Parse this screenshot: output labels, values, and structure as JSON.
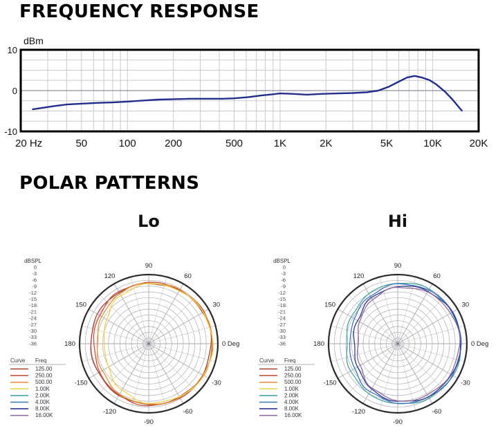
{
  "titles": {
    "frequency_response": "FREQUENCY RESPONSE",
    "polar_patterns": "POLAR PATTERNS"
  },
  "chart_data": [
    {
      "type": "line",
      "title": "FREQUENCY RESPONSE",
      "ylabel": "dBm",
      "ylim": [
        -10,
        10
      ],
      "yticks": [
        "10",
        "0",
        "-10"
      ],
      "ytick_values": [
        10,
        0,
        -10
      ],
      "xlim_hz": [
        20,
        20000
      ],
      "xticks": [
        {
          "hz": 20,
          "label": "20 Hz"
        },
        {
          "hz": 50,
          "label": "50"
        },
        {
          "hz": 100,
          "label": "100"
        },
        {
          "hz": 200,
          "label": "200"
        },
        {
          "hz": 500,
          "label": "500"
        },
        {
          "hz": 1000,
          "label": "1K"
        },
        {
          "hz": 2000,
          "label": "2K"
        },
        {
          "hz": 5000,
          "label": "5K"
        },
        {
          "hz": 10000,
          "label": "10K"
        },
        {
          "hz": 20000,
          "label": "20K"
        }
      ],
      "grid": true,
      "series": [
        {
          "name": "frequency-response",
          "color": "#232c8c",
          "points_hz_db": [
            [
              24,
              -4.6
            ],
            [
              28,
              -4.2
            ],
            [
              33,
              -3.8
            ],
            [
              40,
              -3.4
            ],
            [
              50,
              -3.2
            ],
            [
              65,
              -3.0
            ],
            [
              80,
              -2.9
            ],
            [
              100,
              -2.7
            ],
            [
              130,
              -2.4
            ],
            [
              160,
              -2.2
            ],
            [
              200,
              -2.1
            ],
            [
              260,
              -2.0
            ],
            [
              330,
              -2.0
            ],
            [
              420,
              -2.0
            ],
            [
              500,
              -1.9
            ],
            [
              620,
              -1.6
            ],
            [
              750,
              -1.2
            ],
            [
              900,
              -0.9
            ],
            [
              1000,
              -0.7
            ],
            [
              1200,
              -0.8
            ],
            [
              1500,
              -1.0
            ],
            [
              1900,
              -0.8
            ],
            [
              2400,
              -0.7
            ],
            [
              3000,
              -0.6
            ],
            [
              3700,
              -0.4
            ],
            [
              4400,
              0.0
            ],
            [
              5200,
              1.0
            ],
            [
              6000,
              2.2
            ],
            [
              6800,
              3.2
            ],
            [
              7600,
              3.6
            ],
            [
              8500,
              3.2
            ],
            [
              9500,
              2.6
            ],
            [
              10500,
              1.6
            ],
            [
              12000,
              -0.2
            ],
            [
              13500,
              -2.2
            ],
            [
              14800,
              -4.0
            ],
            [
              15500,
              -4.9
            ]
          ]
        }
      ]
    },
    {
      "type": "polar",
      "title": "Lo",
      "radial_label": "dBSPL",
      "radial_ticks": [
        "0",
        "-3",
        "-6",
        "-9",
        "-12",
        "-15",
        "-18",
        "-21",
        "-24",
        "-27",
        "-30",
        "-33",
        "-36"
      ],
      "rlim": [
        0,
        -36
      ],
      "angle_unit": "Deg",
      "angle_labels": [
        {
          "deg": 90,
          "label": "90"
        },
        {
          "deg": 60,
          "label": "60"
        },
        {
          "deg": 30,
          "label": "30"
        },
        {
          "deg": 0,
          "label": "0 Deg"
        },
        {
          "deg": -30,
          "label": "-30"
        },
        {
          "deg": -60,
          "label": "-60"
        },
        {
          "deg": -90,
          "label": "-90"
        },
        {
          "deg": -120,
          "label": "-120"
        },
        {
          "deg": -150,
          "label": "-150"
        },
        {
          "deg": 180,
          "label": "180"
        },
        {
          "deg": 150,
          "label": "150"
        },
        {
          "deg": 120,
          "label": "120"
        }
      ],
      "legend": {
        "headers": [
          "Curve",
          "Freq"
        ]
      },
      "legend_entries": [
        {
          "label": "125.00",
          "color": "#9c4038"
        },
        {
          "label": "250.00",
          "color": "#c44f38"
        },
        {
          "label": "500.00",
          "color": "#e2913b"
        },
        {
          "label": "1.00K",
          "color": "#edd24e"
        },
        {
          "label": "2.00K",
          "color": "#49a5a0"
        },
        {
          "label": "4.00K",
          "color": "#3f72be"
        },
        {
          "label": "8.00K",
          "color": "#2d3a8d"
        },
        {
          "label": "16.00K",
          "color": "#8f6b99"
        }
      ],
      "series": [
        {
          "name": "125.00",
          "color": "#9c4038",
          "angle_step_deg": 30,
          "values_db": [
            -3.5,
            -3.5,
            -4,
            -4.5,
            -5,
            -5.5,
            -6,
            -5.5,
            -5,
            -4.5,
            -4,
            -3.5
          ]
        },
        {
          "name": "250.00",
          "color": "#c44f38",
          "angle_step_deg": 30,
          "values_db": [
            -3,
            -3,
            -3.5,
            -4,
            -5,
            -6.5,
            -7.5,
            -6.5,
            -5,
            -4,
            -3.5,
            -3
          ]
        },
        {
          "name": "500.00",
          "color": "#e2913b",
          "angle_step_deg": 30,
          "values_db": [
            -3,
            -3,
            -3.5,
            -4.5,
            -6,
            -8,
            -9,
            -8,
            -6,
            -4.5,
            -3.5,
            -3
          ]
        },
        {
          "name": "1.00K",
          "color": "#edd24e",
          "angle_step_deg": 30,
          "values_db": [
            -2.8,
            -3,
            -4,
            -5,
            -7,
            -10.5,
            -13,
            -12,
            -8,
            -5,
            -4,
            -3
          ]
        }
      ]
    },
    {
      "type": "polar",
      "title": "Hi",
      "radial_label": "dBSPL",
      "radial_ticks": [
        "0",
        "-3",
        "-6",
        "-9",
        "-12",
        "-15",
        "-18",
        "-21",
        "-24",
        "-27",
        "-30",
        "-33",
        "-36"
      ],
      "rlim": [
        0,
        -36
      ],
      "angle_unit": "Deg",
      "angle_labels": [
        {
          "deg": 90,
          "label": "90"
        },
        {
          "deg": 60,
          "label": "60"
        },
        {
          "deg": 30,
          "label": "30"
        },
        {
          "deg": 0,
          "label": "0 Deg"
        },
        {
          "deg": -30,
          "label": "-30"
        },
        {
          "deg": -60,
          "label": "-60"
        },
        {
          "deg": -90,
          "label": "-90"
        },
        {
          "deg": -120,
          "label": "-120"
        },
        {
          "deg": -150,
          "label": "-150"
        },
        {
          "deg": 180,
          "label": "180"
        },
        {
          "deg": 150,
          "label": "150"
        },
        {
          "deg": 120,
          "label": "120"
        }
      ],
      "legend": {
        "headers": [
          "Curve",
          "Freq"
        ]
      },
      "legend_entries": [
        {
          "label": "125.00",
          "color": "#9c4038"
        },
        {
          "label": "250.00",
          "color": "#c44f38"
        },
        {
          "label": "500.00",
          "color": "#e2913b"
        },
        {
          "label": "1.00K",
          "color": "#edd24e"
        },
        {
          "label": "2.00K",
          "color": "#49a5a0"
        },
        {
          "label": "4.00K",
          "color": "#3f72be"
        },
        {
          "label": "8.00K",
          "color": "#2d3a8d"
        },
        {
          "label": "16.00K",
          "color": "#8f6b99"
        }
      ],
      "series": [
        {
          "name": "2.00K",
          "color": "#49a5a0",
          "angle_step_deg": 30,
          "values_db": [
            -3,
            -3,
            -3.5,
            -4.5,
            -6,
            -8,
            -9.5,
            -8,
            -6,
            -4.5,
            -3.5,
            -3
          ]
        },
        {
          "name": "4.00K",
          "color": "#3f72be",
          "angle_step_deg": 30,
          "values_db": [
            -3,
            -3.2,
            -4,
            -5,
            -7,
            -10,
            -11.5,
            -10,
            -7,
            -5,
            -4,
            -3.2
          ]
        },
        {
          "name": "8.00K",
          "color": "#2d3a8d",
          "angle_step_deg": 30,
          "values_db": [
            -3,
            -3.5,
            -4.5,
            -6,
            -8.5,
            -12,
            -13.5,
            -12,
            -8.5,
            -6,
            -4.5,
            -3.5
          ]
        },
        {
          "name": "16.00K",
          "color": "#8f6b99",
          "angle_step_deg": 30,
          "values_db": [
            -3.8,
            -4.2,
            -5,
            -6.5,
            -9.5,
            -13.5,
            -15.5,
            -13,
            -9.5,
            -6.5,
            -5,
            -4.2
          ]
        }
      ]
    }
  ]
}
